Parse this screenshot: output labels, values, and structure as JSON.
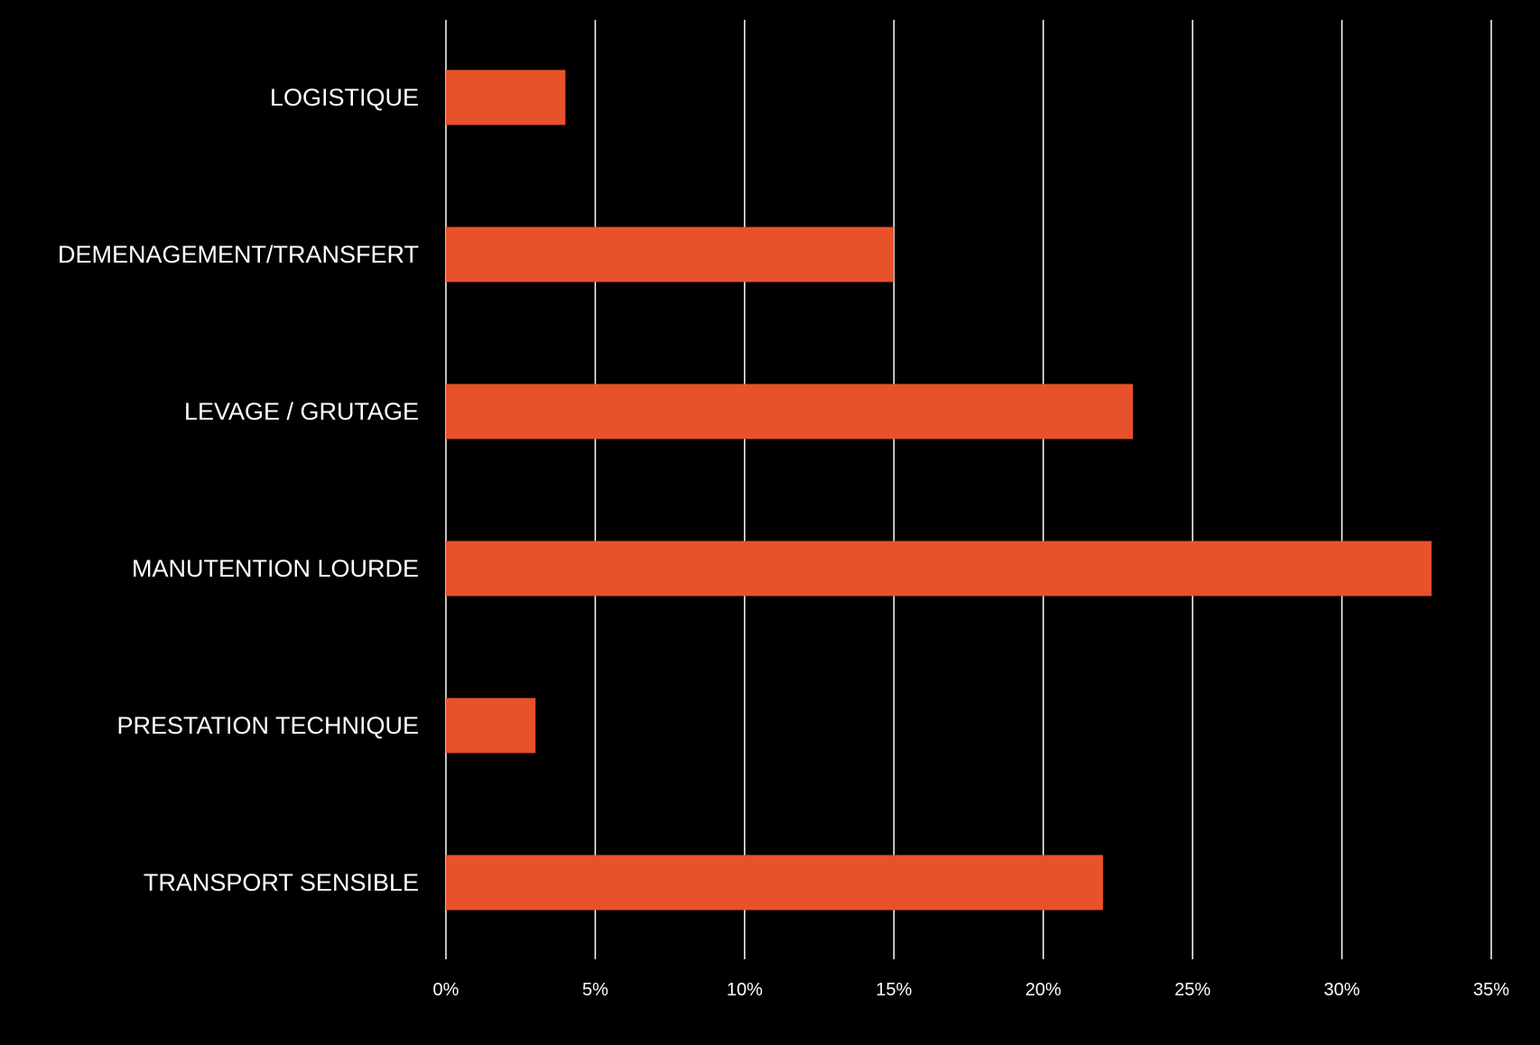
{
  "colors": {
    "background": "#000000",
    "bar": "#E8522A",
    "grid": "#ffffff",
    "text": "#ffffff"
  },
  "chart_data": {
    "type": "bar",
    "orientation": "horizontal",
    "categories": [
      "LOGISTIQUE",
      "DEMENAGEMENT/TRANSFERT",
      "LEVAGE / GRUTAGE",
      "MANUTENTION LOURDE",
      "PRESTATION TECHNIQUE",
      "TRANSPORT SENSIBLE"
    ],
    "values": [
      4,
      15,
      23,
      33,
      3,
      22
    ],
    "value_unit": "%",
    "xlim": [
      0,
      35
    ],
    "x_ticks": [
      0,
      5,
      10,
      15,
      20,
      25,
      30,
      35
    ],
    "x_tick_labels": [
      "0%",
      "5%",
      "10%",
      "15%",
      "20%",
      "25%",
      "30%",
      "35%"
    ],
    "title": "",
    "xlabel": "",
    "ylabel": "",
    "grid": "vertical",
    "legend": "none"
  }
}
